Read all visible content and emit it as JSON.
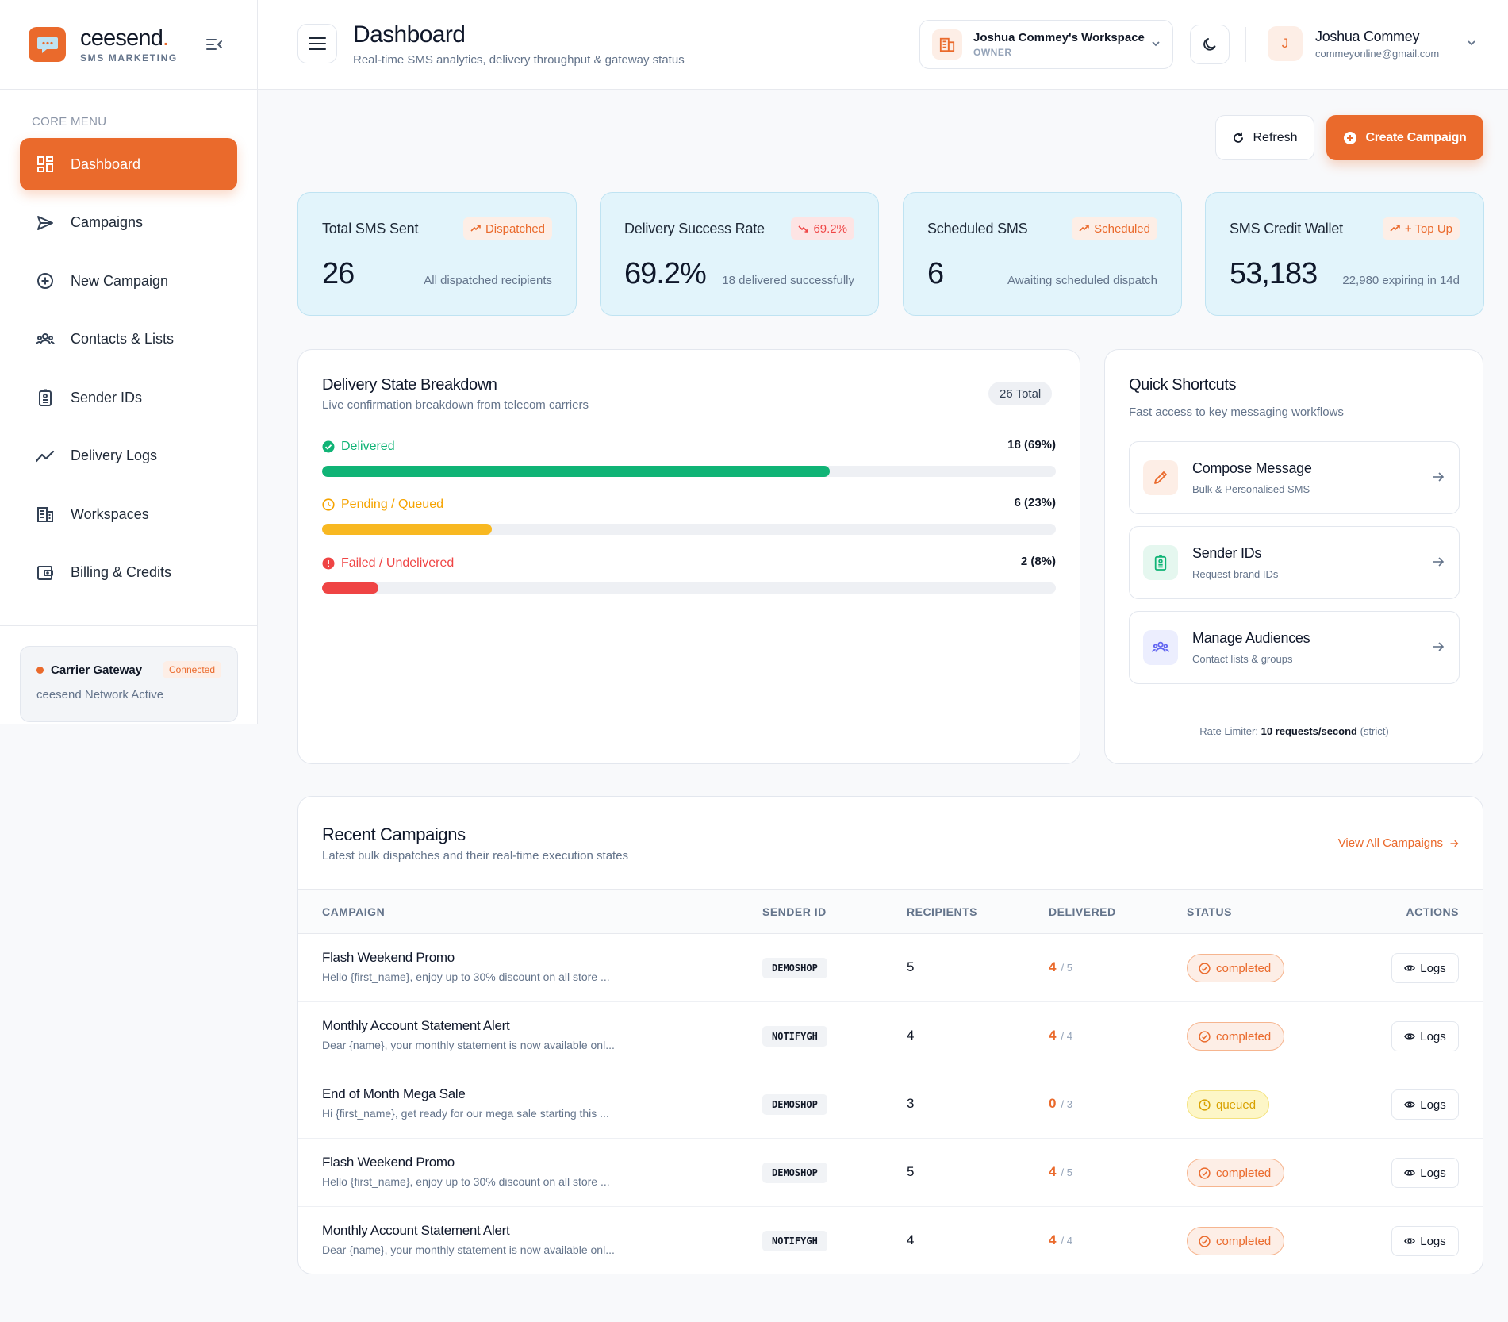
{
  "brand": {
    "name": "ceesend",
    "name_dot": ".",
    "subtitle": "SMS MARKETING"
  },
  "sidebar": {
    "menu_title": "CORE MENU",
    "items": [
      {
        "label": "Dashboard",
        "icon": "dashboard-icon",
        "active": true
      },
      {
        "label": "Campaigns",
        "icon": "send-icon"
      },
      {
        "label": "New Campaign",
        "icon": "plus-circle-icon"
      },
      {
        "label": "Contacts & Lists",
        "icon": "users-icon"
      },
      {
        "label": "Sender IDs",
        "icon": "id-badge-icon"
      },
      {
        "label": "Delivery Logs",
        "icon": "trend-icon"
      },
      {
        "label": "Workspaces",
        "icon": "building-icon"
      },
      {
        "label": "Billing & Credits",
        "icon": "wallet-icon"
      }
    ],
    "gateway": {
      "title": "Carrier Gateway",
      "badge": "Connected",
      "subtitle": "ceesend Network Active"
    }
  },
  "header": {
    "title": "Dashboard",
    "subtitle": "Real-time SMS analytics, delivery throughput & gateway status",
    "workspace": {
      "name": "Joshua Commey's Workspace",
      "role": "OWNER"
    },
    "user": {
      "initial": "J",
      "name": "Joshua Commey",
      "email": "commeyonline@gmail.com"
    }
  },
  "actions": {
    "refresh": "Refresh",
    "create": "Create Campaign"
  },
  "stats": [
    {
      "label": "Total SMS Sent",
      "badge": "Dispatched",
      "value": "26",
      "note": "All dispatched recipients"
    },
    {
      "label": "Delivery Success Rate",
      "badge": "69.2%",
      "value": "69.2%",
      "note": "18 delivered successfully"
    },
    {
      "label": "Scheduled SMS",
      "badge": "Scheduled",
      "value": "6",
      "note": "Awaiting scheduled dispatch"
    },
    {
      "label": "SMS Credit Wallet",
      "badge": "+ Top Up",
      "value": "53,183",
      "note": "22,980 expiring in 14d"
    }
  ],
  "breakdown": {
    "title": "Delivery State Breakdown",
    "subtitle": "Live confirmation breakdown from telecom carriers",
    "total": "26 Total",
    "rows": [
      {
        "label": "Delivered",
        "count": "18 (69%)",
        "percent": 69.2,
        "color": "#10b476"
      },
      {
        "label": "Pending / Queued",
        "count": "6 (23%)",
        "percent": 23.1,
        "color": "#f8b821"
      },
      {
        "label": "Failed / Undelivered",
        "count": "2 (8%)",
        "percent": 7.7,
        "color": "#ef4444"
      }
    ]
  },
  "shortcuts": {
    "title": "Quick Shortcuts",
    "subtitle": "Fast access to key messaging workflows",
    "items": [
      {
        "title": "Compose Message",
        "subtitle": "Bulk & Personalised SMS",
        "icon": "pencil-icon"
      },
      {
        "title": "Sender IDs",
        "subtitle": "Request brand IDs",
        "icon": "id-badge-icon"
      },
      {
        "title": "Manage Audiences",
        "subtitle": "Contact lists & groups",
        "icon": "users-icon"
      }
    ],
    "rate_prefix": "Rate Limiter:",
    "rate_value": "10 requests/second",
    "rate_suffix": "(strict)"
  },
  "campaigns": {
    "title": "Recent Campaigns",
    "subtitle": "Latest bulk dispatches and their real-time execution states",
    "view_all": "View All Campaigns",
    "columns": [
      "CAMPAIGN",
      "SENDER ID",
      "RECIPIENTS",
      "DELIVERED",
      "STATUS",
      "ACTIONS"
    ],
    "rows": [
      {
        "name": "Flash Weekend Promo",
        "message": "Hello {first_name}, enjoy up to 30% discount on all store ...",
        "sender": "DEMOSHOP",
        "recipients": "5",
        "delivered": "4",
        "delivered_total": "/ 5",
        "status": "completed",
        "action": "Logs"
      },
      {
        "name": "Monthly Account Statement Alert",
        "message": "Dear {name}, your monthly statement is now available onl...",
        "sender": "NOTIFYGH",
        "recipients": "4",
        "delivered": "4",
        "delivered_total": "/ 4",
        "status": "completed",
        "action": "Logs"
      },
      {
        "name": "End of Month Mega Sale",
        "message": "Hi {first_name}, get ready for our mega sale starting this ...",
        "sender": "DEMOSHOP",
        "recipients": "3",
        "delivered": "0",
        "delivered_total": "/ 3",
        "status": "queued",
        "action": "Logs"
      },
      {
        "name": "Flash Weekend Promo",
        "message": "Hello {first_name}, enjoy up to 30% discount on all store ...",
        "sender": "DEMOSHOP",
        "recipients": "5",
        "delivered": "4",
        "delivered_total": "/ 5",
        "status": "completed",
        "action": "Logs"
      },
      {
        "name": "Monthly Account Statement Alert",
        "message": "Dear {name}, your monthly statement is now available onl...",
        "sender": "NOTIFYGH",
        "recipients": "4",
        "delivered": "4",
        "delivered_total": "/ 4",
        "status": "completed",
        "action": "Logs"
      }
    ]
  },
  "colors": {
    "accent": "#ea6a2c",
    "stat_bg": "#e2f4fb",
    "success": "#10b476",
    "warning": "#f8b821",
    "danger": "#ef4444"
  }
}
